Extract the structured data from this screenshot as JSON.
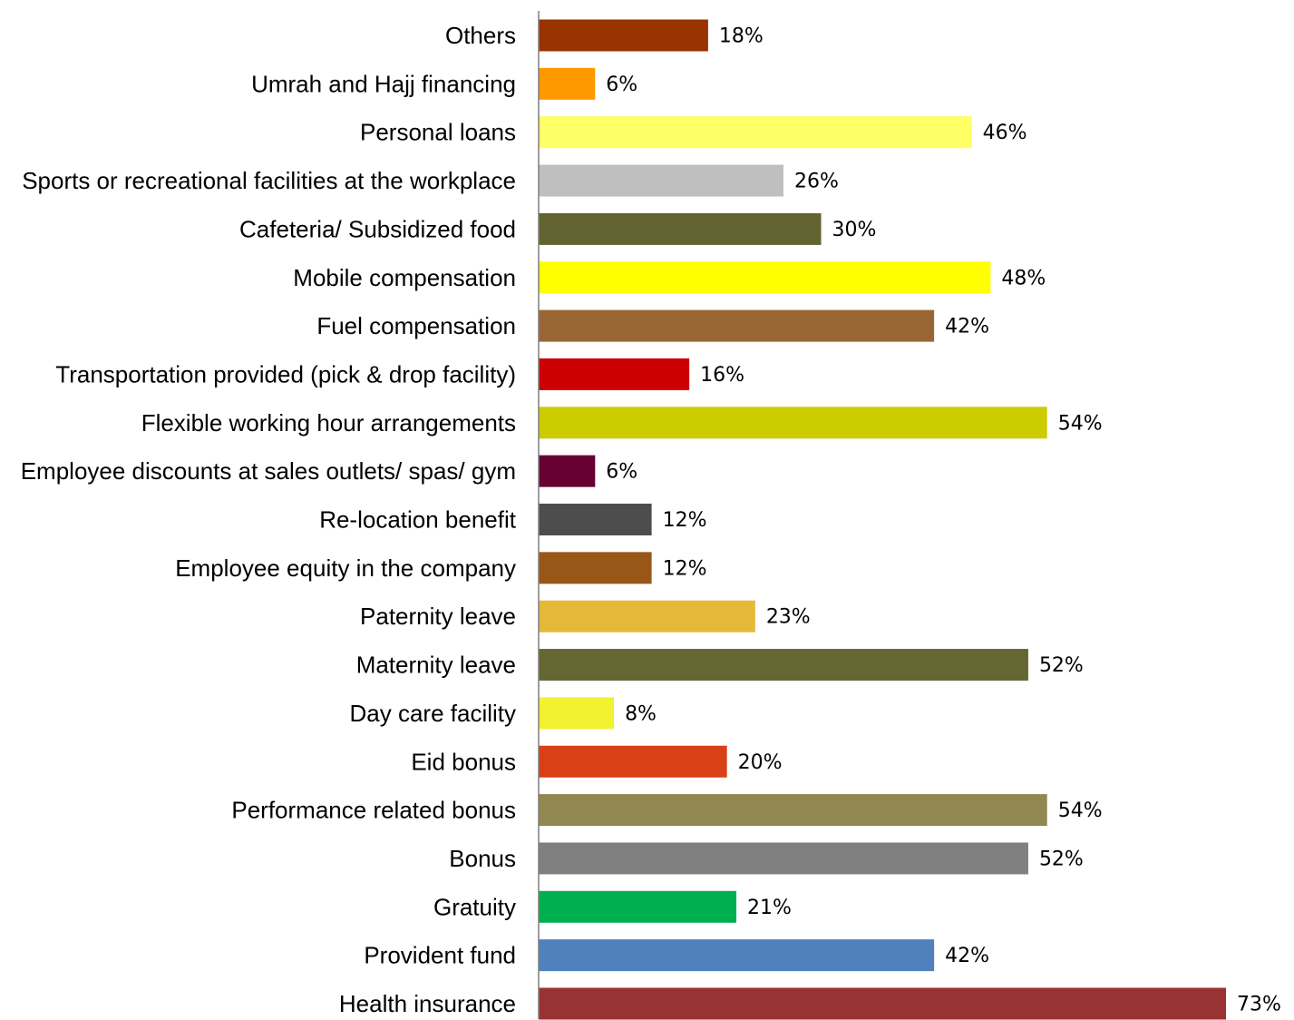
{
  "chart_data": {
    "type": "bar",
    "orientation": "horizontal",
    "title": "",
    "xlabel": "",
    "ylabel": "",
    "xlim": [
      0,
      75
    ],
    "grid": false,
    "legend": "none",
    "value_suffix": "%",
    "categories": [
      "Others",
      "Umrah and Hajj financing",
      "Personal loans",
      "Sports or recreational facilities at the workplace",
      "Cafeteria/ Subsidized food",
      "Mobile compensation",
      "Fuel compensation",
      "Transportation provided (pick & drop facility)",
      "Flexible working hour arrangements",
      "Employee discounts at sales outlets/ spas/ gym",
      "Re-location benefit",
      "Employee equity in the company",
      "Paternity leave",
      "Maternity leave",
      "Day care facility",
      "Eid bonus",
      "Performance related bonus",
      "Bonus",
      "Gratuity",
      "Provident fund",
      "Health insurance"
    ],
    "values": [
      18,
      6,
      46,
      26,
      30,
      48,
      42,
      16,
      54,
      6,
      12,
      12,
      23,
      52,
      8,
      20,
      54,
      52,
      21,
      42,
      73
    ],
    "labels": [
      "18%",
      "6%",
      "46%",
      "26%",
      "30%",
      "48%",
      "42%",
      "16%",
      "54%",
      "6%",
      "12%",
      "12%",
      "23%",
      "52%",
      "8%",
      "20%",
      "54%",
      "52%",
      "21%",
      "42%",
      "73%"
    ],
    "colors": [
      "#993300",
      "#FF9900",
      "#FFFF66",
      "#BFBFBF",
      "#636331",
      "#FFFF00",
      "#996633",
      "#CC0000",
      "#CCCC00",
      "#660033",
      "#4D4D4D",
      "#995717",
      "#E6B83A",
      "#666633",
      "#F2F230",
      "#D94016",
      "#908850",
      "#808080",
      "#00B050",
      "#4F81BD",
      "#993333"
    ]
  }
}
